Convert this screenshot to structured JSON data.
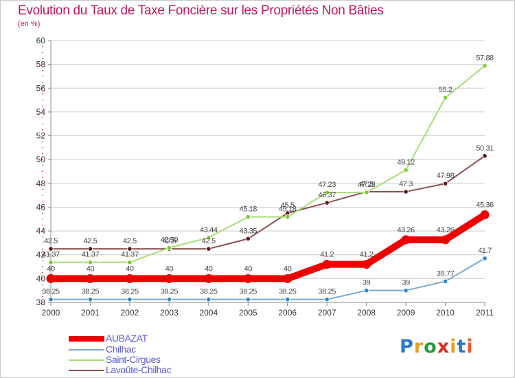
{
  "title": "Evolution du Taux de Taxe Foncière sur les Propriétés Non Bâties",
  "unit_label": "(en %)",
  "logo_text": "Proxiti",
  "colors": {
    "title": "#c0185a",
    "legend_text": "#5a5ad8",
    "grid": "#cccccc",
    "axis": "#888888"
  },
  "chart_data": {
    "type": "line",
    "title": "Evolution du Taux de Taxe Foncière sur les Propriétés Non Bâties",
    "ylabel": "(en %)",
    "xlabel": "",
    "x": [
      "2000",
      "2001",
      "2002",
      "2003",
      "2004",
      "2005",
      "2006",
      "2007",
      "2008",
      "2009",
      "2010",
      "2011"
    ],
    "ylim": [
      38,
      60
    ],
    "yticks": [
      38,
      40,
      42,
      44,
      46,
      48,
      50,
      52,
      54,
      56,
      58,
      60
    ],
    "grid": "horizontal",
    "legend_position": "bottom-left",
    "series": [
      {
        "name": "AUBAZAT",
        "values": [
          40,
          40,
          40,
          40,
          40,
          40,
          40,
          41.2,
          41.2,
          43.26,
          43.26,
          45.36
        ],
        "labels": [
          "40",
          "40",
          "40",
          "40",
          "40",
          "40",
          "40",
          "41.2",
          "41.2",
          "43.26",
          "43.26",
          "45.36"
        ],
        "color": "#ee0000",
        "marker_color": "#ee0000",
        "bold": true
      },
      {
        "name": "Chilhac",
        "values": [
          38.25,
          38.25,
          38.25,
          38.25,
          38.25,
          38.25,
          38.25,
          38.25,
          39,
          39,
          39.77,
          41.7
        ],
        "labels": [
          "38.25",
          "38.25",
          "38.25",
          "38.25",
          "38.25",
          "38.25",
          "38.25",
          "38.25",
          "39",
          "39",
          "39.77",
          "41.7"
        ],
        "color": "#7aa9d0",
        "marker_color": "#2f86c8",
        "bold": false
      },
      {
        "name": "Saint-Cirgues",
        "values": [
          41.37,
          41.37,
          41.37,
          42.59,
          43.44,
          45.18,
          45.18,
          47.23,
          47.23,
          49.12,
          55.2,
          57.88
        ],
        "labels": [
          "41.37",
          "41.37",
          "41.37",
          "42.59",
          "43.44",
          "45.18",
          "45.18",
          "47.23",
          "47.23",
          "49.12",
          "55.2",
          "57.88"
        ],
        "color": "#a8dc78",
        "marker_color": "#7ccc34",
        "bold": false
      },
      {
        "name": "Lavoûte-Chilhac",
        "values": [
          42.5,
          42.5,
          42.5,
          42.5,
          42.5,
          43.35,
          45.5,
          46.37,
          47.3,
          47.3,
          47.98,
          50.31
        ],
        "labels": [
          "42.5",
          "42.5",
          "42.5",
          "42.5",
          "42.5",
          "43.35",
          "45.5",
          "46.37",
          "47.3",
          "47.3",
          "47.98",
          "50.31"
        ],
        "color": "#8a5050",
        "marker_color": "#5a1818",
        "bold": false
      }
    ]
  }
}
